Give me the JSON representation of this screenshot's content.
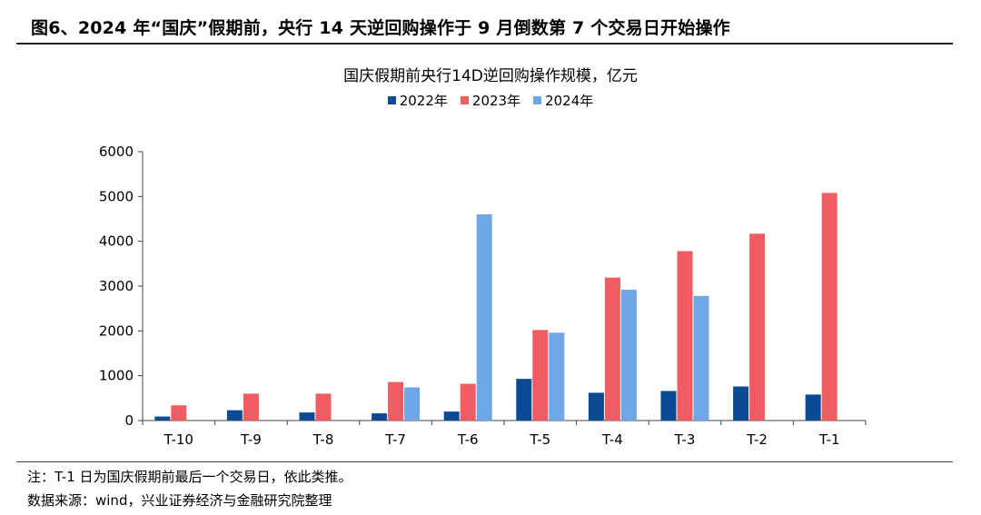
{
  "figure_title": "图6、2024 年“国庆”假期前，央行 14 天逆回购操作于 9 月倒数第 7 个交易日开始操作",
  "note": "注：T-1 日为国庆假期前最后一个交易日，依此类推。",
  "source": "数据来源：wind，兴业证券经济与金融研究院整理",
  "chart_data": {
    "type": "bar",
    "title": "国庆假期前央行14D逆回购操作规模，亿元",
    "xlabel": "",
    "ylabel": "",
    "ylim": [
      0,
      6000
    ],
    "yticks": [
      0,
      1000,
      2000,
      3000,
      4000,
      5000,
      6000
    ],
    "grid": false,
    "legend_position": "top-center",
    "categories": [
      "T-10",
      "T-9",
      "T-8",
      "T-7",
      "T-6",
      "T-5",
      "T-4",
      "T-3",
      "T-2",
      "T-1"
    ],
    "series": [
      {
        "name": "2022年",
        "color": "#0b4a94",
        "values": [
          90,
          230,
          180,
          160,
          200,
          930,
          620,
          660,
          760,
          580
        ]
      },
      {
        "name": "2023年",
        "color": "#ef5d62",
        "values": [
          340,
          600,
          600,
          860,
          820,
          2020,
          3190,
          3780,
          4170,
          5080
        ]
      },
      {
        "name": "2024年",
        "color": "#6ea6e6",
        "values": [
          null,
          null,
          null,
          740,
          4600,
          1960,
          2920,
          2780,
          null,
          null
        ]
      }
    ]
  }
}
